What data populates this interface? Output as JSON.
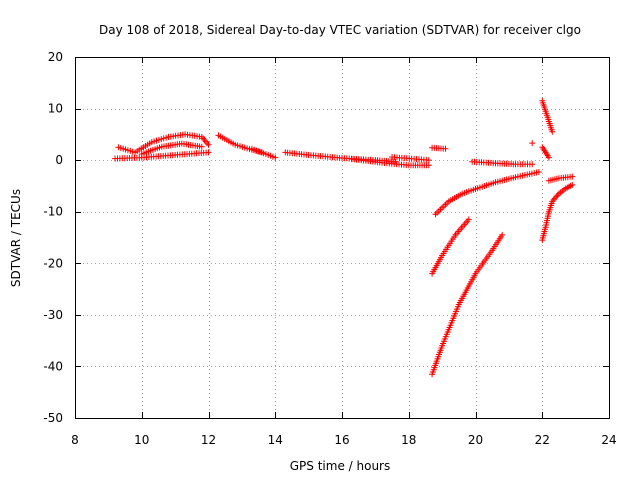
{
  "chart_data": {
    "type": "scatter",
    "title": "Day 108 of 2018, Sidereal Day-to-day VTEC variation (SDTVAR) for receiver clgo",
    "xlabel": "GPS time / hours",
    "ylabel": "SDTVAR / TECUs",
    "xlim": [
      8,
      24
    ],
    "ylim": [
      -50,
      20
    ],
    "x_ticks": [
      8,
      10,
      12,
      14,
      16,
      18,
      20,
      22,
      24
    ],
    "y_ticks": [
      -50,
      -40,
      -30,
      -20,
      -10,
      0,
      10,
      20
    ],
    "x_tick_labels": [
      "8",
      "10",
      "12",
      "14",
      "16",
      "18",
      "20",
      "22",
      "24"
    ],
    "y_tick_labels": [
      "-50",
      "-40",
      "-30",
      "-20",
      "-10",
      "0",
      "10",
      "20"
    ],
    "grid": true,
    "legend": "none",
    "marker": "+",
    "color": "#ff0000",
    "segments": [
      {
        "points": [
          [
            9.2,
            0.3
          ],
          [
            10.0,
            0.5
          ],
          [
            11.0,
            1.0
          ],
          [
            12.0,
            1.5
          ]
        ]
      },
      {
        "points": [
          [
            9.3,
            2.5
          ],
          [
            9.8,
            1.5
          ],
          [
            10.3,
            3.5
          ],
          [
            10.8,
            4.5
          ],
          [
            11.3,
            5.0
          ],
          [
            11.8,
            4.5
          ],
          [
            12.0,
            3.0
          ]
        ]
      },
      {
        "points": [
          [
            10.0,
            1.2
          ],
          [
            10.6,
            2.6
          ],
          [
            11.2,
            3.2
          ],
          [
            11.8,
            2.6
          ]
        ]
      },
      {
        "points": [
          [
            12.3,
            4.8
          ],
          [
            12.8,
            3.0
          ],
          [
            13.3,
            2.0
          ],
          [
            13.6,
            1.5
          ]
        ]
      },
      {
        "points": [
          [
            13.3,
            2.2
          ],
          [
            14.0,
            0.5
          ]
        ]
      },
      {
        "points": [
          [
            14.3,
            1.5
          ],
          [
            15.0,
            1.0
          ],
          [
            16.0,
            0.4
          ],
          [
            17.0,
            0.0
          ],
          [
            17.6,
            -0.3
          ]
        ]
      },
      {
        "points": [
          [
            16.3,
            0.2
          ],
          [
            17.2,
            -0.5
          ],
          [
            18.0,
            -1.0
          ],
          [
            18.6,
            -1.0
          ]
        ]
      },
      {
        "points": [
          [
            17.5,
            0.6
          ],
          [
            18.6,
            0.0
          ]
        ]
      },
      {
        "points": [
          [
            18.7,
            2.4
          ],
          [
            19.1,
            2.2
          ]
        ]
      },
      {
        "points": [
          [
            18.8,
            -10.5
          ],
          [
            19.2,
            -8.0
          ],
          [
            19.6,
            -6.5
          ],
          [
            20.0,
            -5.6
          ],
          [
            20.6,
            -4.3
          ],
          [
            21.2,
            -3.3
          ],
          [
            21.9,
            -2.3
          ]
        ]
      },
      {
        "points": [
          [
            18.7,
            -22.0
          ],
          [
            19.0,
            -18.5
          ],
          [
            19.4,
            -14.5
          ],
          [
            19.8,
            -11.5
          ]
        ]
      },
      {
        "points": [
          [
            18.7,
            -41.5
          ],
          [
            19.0,
            -36.0
          ],
          [
            19.5,
            -28.0
          ],
          [
            20.0,
            -22.0
          ],
          [
            20.5,
            -17.5
          ],
          [
            20.8,
            -14.5
          ]
        ]
      },
      {
        "points": [
          [
            19.9,
            -0.3
          ],
          [
            20.6,
            -0.6
          ],
          [
            21.2,
            -0.8
          ],
          [
            21.7,
            -0.8
          ]
        ]
      },
      {
        "points": [
          [
            21.7,
            3.3
          ]
        ]
      },
      {
        "points": [
          [
            22.0,
            11.5
          ],
          [
            22.1,
            9.5
          ],
          [
            22.2,
            7.5
          ],
          [
            22.3,
            5.5
          ]
        ]
      },
      {
        "points": [
          [
            22.0,
            2.5
          ],
          [
            22.1,
            1.5
          ],
          [
            22.2,
            0.5
          ]
        ]
      },
      {
        "points": [
          [
            22.0,
            -15.5
          ],
          [
            22.1,
            -13.0
          ],
          [
            22.2,
            -10.0
          ],
          [
            22.3,
            -8.0
          ],
          [
            22.5,
            -6.5
          ],
          [
            22.7,
            -5.5
          ],
          [
            22.9,
            -4.8
          ]
        ]
      },
      {
        "points": [
          [
            22.2,
            -4.0
          ],
          [
            22.5,
            -3.5
          ],
          [
            22.9,
            -3.2
          ]
        ]
      }
    ]
  }
}
